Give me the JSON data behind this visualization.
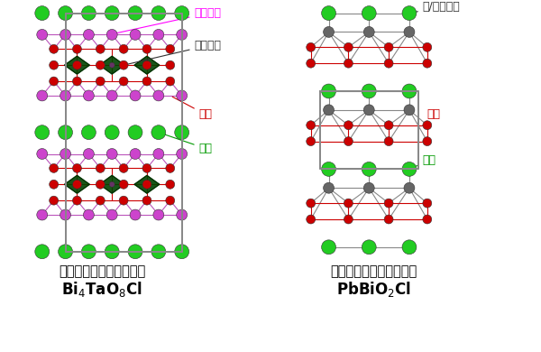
{
  "label_bismuth": "ビスマス",
  "label_tantalum": "タンタル",
  "label_oxygen": "酸素",
  "label_chlorine": "塩素",
  "label_pb_bi": "鉛/ビスマス",
  "title1": "オキシハライド光触媒１",
  "formula1": "Bi₄TaO₈Cl",
  "title2": "オキシハライド光触媒２",
  "formula2": "PbBiO₂Cl",
  "c_Bi": "#CC44CC",
  "c_Ta_fill": "#005500",
  "c_O": "#CC0000",
  "c_Cl": "#22CC22",
  "c_Pb": "#666666",
  "c_bond_red": "#CC0000",
  "c_bond_purple": "#BB55BB",
  "c_bond_gray": "#888888",
  "c_box": "#888888",
  "bg": "#FFFFFF"
}
